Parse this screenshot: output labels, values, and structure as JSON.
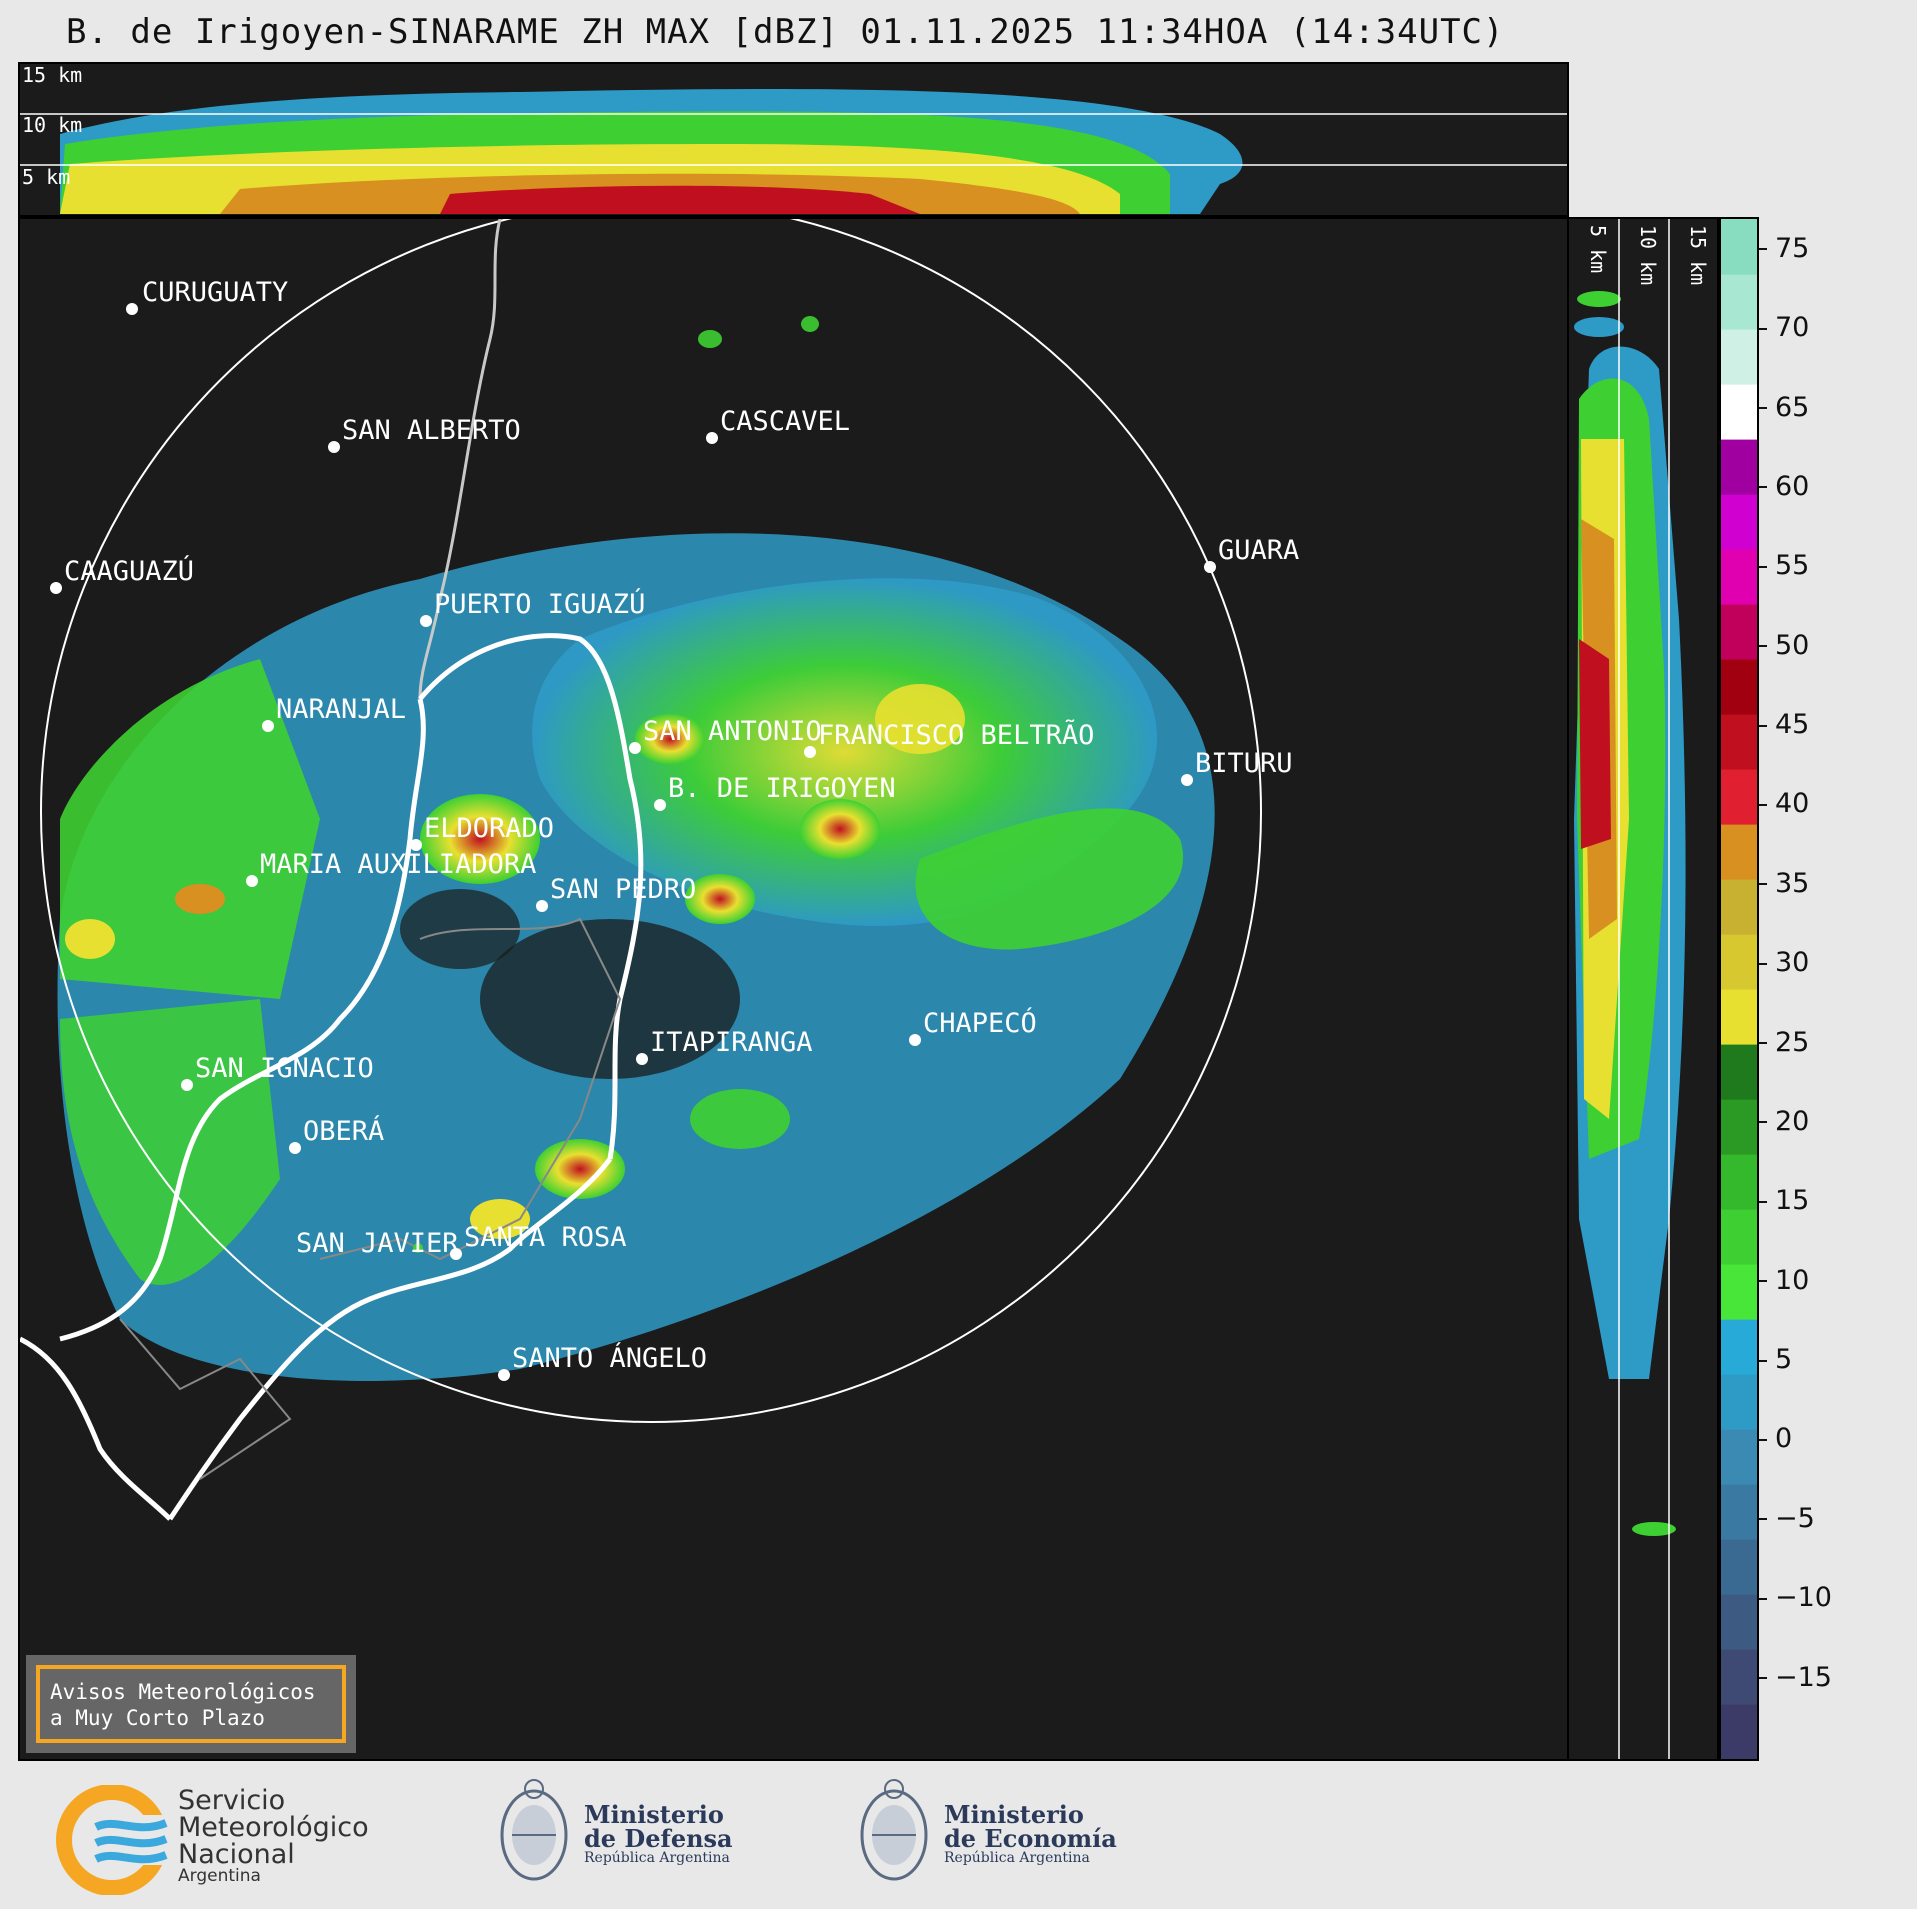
{
  "title": "B. de Irigoyen-SINARAME ZH MAX [dBZ] 01.11.2025 11:34HOA (14:34UTC)",
  "top_panel": {
    "levels": [
      "15 km",
      "10 km",
      "5 km"
    ]
  },
  "side_panel": {
    "levels": [
      "5 km",
      "10 km",
      "15 km"
    ]
  },
  "colorbar": {
    "ticks": [
      "75",
      "70",
      "65",
      "60",
      "55",
      "50",
      "45",
      "40",
      "35",
      "30",
      "25",
      "20",
      "15",
      "10",
      "5",
      "0",
      "−5",
      "−10",
      "−15"
    ],
    "colors": [
      "#3c3a66",
      "#3e4a74",
      "#3c5a82",
      "#3a6a92",
      "#3a7aa2",
      "#3a8ab4",
      "#2e9ac6",
      "#28aad8",
      "#49e63a",
      "#3ed032",
      "#34b82c",
      "#2a9a24",
      "#1e7a1c",
      "#e8e030",
      "#d8c830",
      "#c8b030",
      "#d89020",
      "#e02030",
      "#c01020",
      "#a00010",
      "#c0005a",
      "#e000b0",
      "#d000d0",
      "#a000a0",
      "#ffffff",
      "#cff0e4",
      "#a8e8d2",
      "#88dcc0"
    ],
    "range": [
      -20,
      77
    ]
  },
  "cities": [
    {
      "name": "CURUGUATY"
    },
    {
      "name": "SAN ALBERTO"
    },
    {
      "name": "CASCAVEL"
    },
    {
      "name": "CAAGUAZÚ"
    },
    {
      "name": "GUARA"
    },
    {
      "name": "PUERTO IGUAZÚ"
    },
    {
      "name": "NARANJAL"
    },
    {
      "name": "SAN ANTONIO"
    },
    {
      "name": "FRANCISCO BELTRÃO"
    },
    {
      "name": "BITURU"
    },
    {
      "name": "B. DE IRIGOYEN"
    },
    {
      "name": "ELDORADO"
    },
    {
      "name": "MARIA AUXILIADORA"
    },
    {
      "name": "SAN PEDRO"
    },
    {
      "name": "CHAPECÓ"
    },
    {
      "name": "ITAPIRANGA"
    },
    {
      "name": "SAN IGNACIO"
    },
    {
      "name": "OBERÁ"
    },
    {
      "name": "SAN JAVIER"
    },
    {
      "name": "SANTA ROSA"
    },
    {
      "name": "SANTO ÁNGELO"
    }
  ],
  "aviso": {
    "line1": "Avisos Meteorológicos",
    "line2": "a Muy Corto Plazo"
  },
  "logos": {
    "smn": {
      "line1": "Servicio",
      "line2": "Meteorológico",
      "line3": "Nacional",
      "line4": "Argentina"
    },
    "defensa": {
      "line1": "Ministerio",
      "line2": "de Defensa",
      "line3": "República Argentina"
    },
    "economia": {
      "line1": "Ministerio",
      "line2": "de Economía",
      "line3": "República Argentina"
    }
  }
}
